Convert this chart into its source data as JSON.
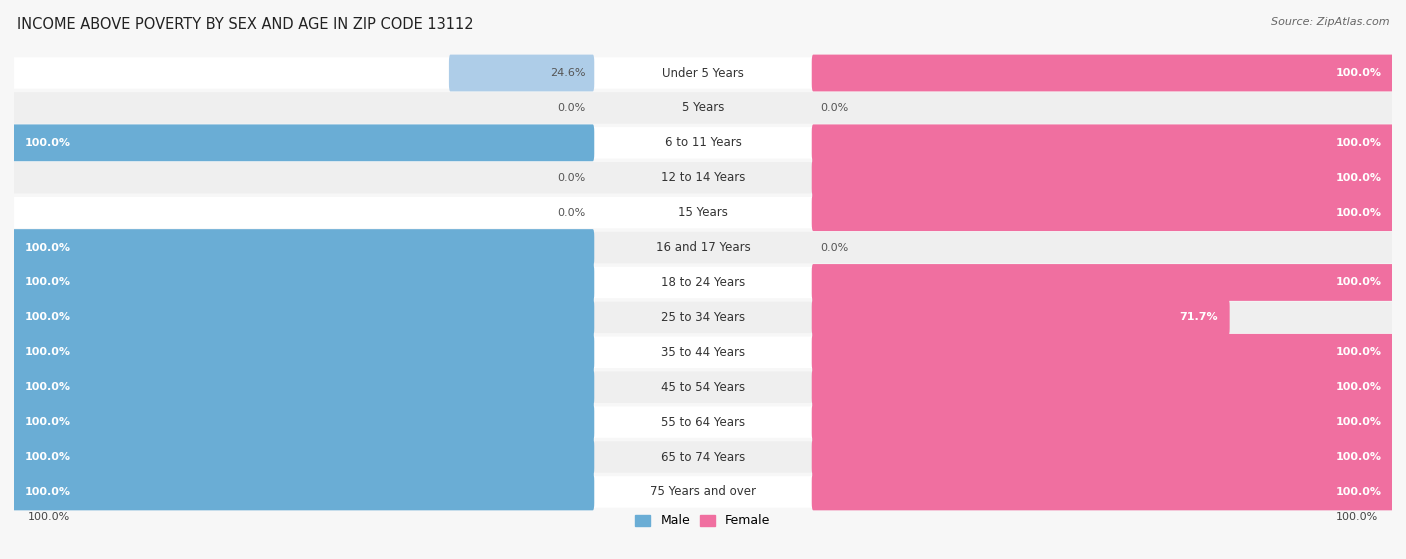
{
  "title": "INCOME ABOVE POVERTY BY SEX AND AGE IN ZIP CODE 13112",
  "source": "Source: ZipAtlas.com",
  "categories": [
    "Under 5 Years",
    "5 Years",
    "6 to 11 Years",
    "12 to 14 Years",
    "15 Years",
    "16 and 17 Years",
    "18 to 24 Years",
    "25 to 34 Years",
    "35 to 44 Years",
    "45 to 54 Years",
    "55 to 64 Years",
    "65 to 74 Years",
    "75 Years and over"
  ],
  "male_values": [
    24.6,
    0.0,
    100.0,
    0.0,
    0.0,
    100.0,
    100.0,
    100.0,
    100.0,
    100.0,
    100.0,
    100.0,
    100.0
  ],
  "female_values": [
    100.0,
    0.0,
    100.0,
    100.0,
    100.0,
    0.0,
    100.0,
    71.7,
    100.0,
    100.0,
    100.0,
    100.0,
    100.0
  ],
  "male_color": "#6aadd5",
  "male_color_light": "#aecde8",
  "female_color": "#f06fa0",
  "female_color_light": "#f5a8c5",
  "row_colors": [
    "#ffffff",
    "#efefef"
  ],
  "title_fontsize": 10.5,
  "source_fontsize": 8,
  "bar_label_fontsize": 8,
  "cat_label_fontsize": 8.5,
  "legend_fontsize": 9
}
